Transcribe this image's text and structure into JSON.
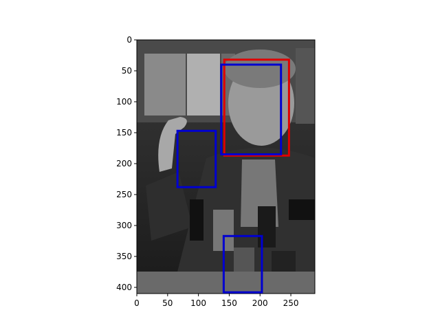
{
  "chart_data": {
    "type": "image-with-bounding-boxes",
    "image": {
      "description": "grayscale photo",
      "width": 289,
      "height": 410
    },
    "xlim": [
      0,
      289
    ],
    "ylim": [
      410,
      0
    ],
    "y_inverted": true,
    "x_ticks": [
      0,
      50,
      100,
      150,
      200,
      250
    ],
    "y_ticks": [
      0,
      50,
      100,
      150,
      200,
      250,
      300,
      350,
      400
    ],
    "boxes": [
      {
        "color": "#e00000",
        "x0": 142,
        "y0": 32,
        "x1": 247,
        "y1": 187
      },
      {
        "color": "#0000d0",
        "x0": 137,
        "y0": 40,
        "x1": 234,
        "y1": 185
      },
      {
        "color": "#0000d0",
        "x0": 66,
        "y0": 147,
        "x1": 128,
        "y1": 238
      },
      {
        "color": "#0000d0",
        "x0": 141,
        "y0": 317,
        "x1": 203,
        "y1": 408
      }
    ]
  }
}
